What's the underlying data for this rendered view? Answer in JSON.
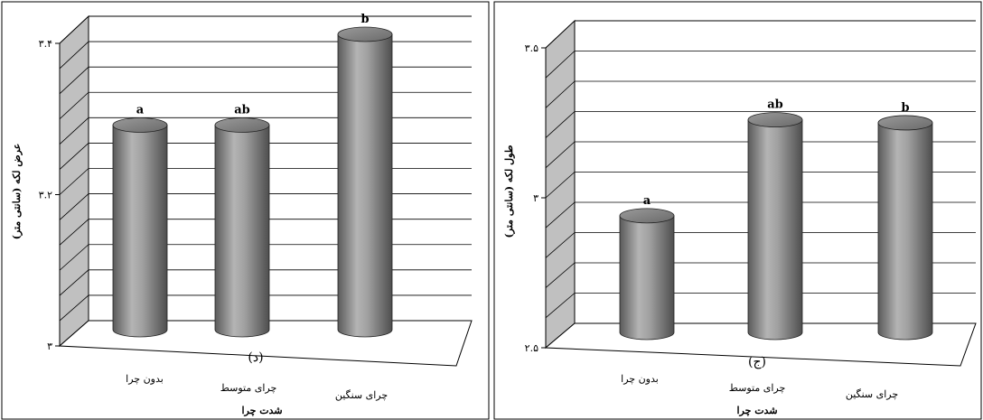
{
  "chart_data": [
    {
      "type": "bar",
      "panel_label": "(د)",
      "categories": [
        "بدون چرا",
        "چرای متوسط",
        "چرای سنگین"
      ],
      "values": [
        3.28,
        3.28,
        3.4
      ],
      "significance_letters": [
        "a",
        "ab",
        "b"
      ],
      "xlabel": "شدت چرا",
      "ylabel": "عرض لکه (سانتی متر)",
      "ylim": [
        3.0,
        3.4
      ],
      "yticks": [
        3.0,
        3.2,
        3.4
      ],
      "ytick_labels": [
        "۳",
        "۳.۲",
        "۳.۴"
      ],
      "gridlines": 12,
      "bar_color": "#8c8c8c",
      "wall_color": "#c0c0c0",
      "title": ""
    },
    {
      "type": "bar",
      "panel_label": "(ج)",
      "categories": [
        "بدون چرا",
        "چرای متوسط",
        "چرای سنگین"
      ],
      "values": [
        2.91,
        3.23,
        3.22
      ],
      "significance_letters": [
        "a",
        "ab",
        "b"
      ],
      "xlabel": "شدت چرا",
      "ylabel": "طول لکه (سانتی متر)",
      "ylim": [
        2.5,
        3.5
      ],
      "yticks": [
        2.5,
        3.0,
        3.5
      ],
      "ytick_labels": [
        "۲.۵",
        "۳",
        "۳.۵"
      ],
      "gridlines": 10,
      "bar_color": "#8c8c8c",
      "wall_color": "#c0c0c0",
      "title": ""
    }
  ]
}
